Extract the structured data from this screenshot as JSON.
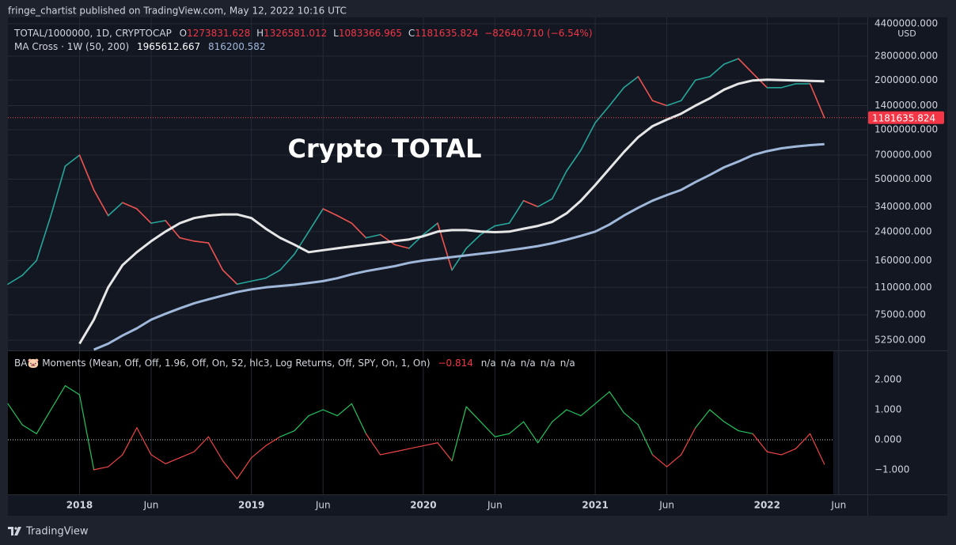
{
  "header": "fringe_chartist published on TradingView.com, May 12, 2022 10:16 UTC",
  "footer": "TradingView",
  "chart_data": [
    {
      "type": "line",
      "annotation": "Crypto TOTAL",
      "axis_unit": "USD",
      "legend": {
        "ohlc": [
          {
            "label": "O",
            "value": 1273831.628
          },
          {
            "label": "H",
            "value": 1326581.012
          },
          {
            "label": "L",
            "value": 1083366.965
          }
        ],
        "close_label": "C",
        "change": "−82640.710 (−6.54%)",
        "indicator": "MA Cross · 1W (50, 200)"
      },
      "log_scale": true,
      "grid": true,
      "last_price_line": true,
      "x": [
        "2017-08",
        "2017-09",
        "2017-10",
        "2017-11",
        "2017-12",
        "2018-01",
        "2018-02",
        "2018-03",
        "2018-04",
        "2018-05",
        "2018-06",
        "2018-07",
        "2018-08",
        "2018-09",
        "2018-10",
        "2018-11",
        "2018-12",
        "2019-01",
        "2019-02",
        "2019-03",
        "2019-04",
        "2019-05",
        "2019-06",
        "2019-07",
        "2019-08",
        "2019-09",
        "2019-10",
        "2019-11",
        "2019-12",
        "2020-01",
        "2020-02",
        "2020-03",
        "2020-04",
        "2020-05",
        "2020-06",
        "2020-07",
        "2020-08",
        "2020-09",
        "2020-10",
        "2020-11",
        "2020-12",
        "2021-01",
        "2021-02",
        "2021-03",
        "2021-04",
        "2021-05",
        "2021-06",
        "2021-07",
        "2021-08",
        "2021-09",
        "2021-10",
        "2021-11",
        "2021-12",
        "2022-01",
        "2022-02",
        "2022-03",
        "2022-04",
        "2022-05"
      ],
      "xlim": [
        "2017-08",
        "2022-08"
      ],
      "xticks": [
        {
          "value": "2018-01",
          "label": "2018"
        },
        {
          "value": "2018-06",
          "label": "Jun"
        },
        {
          "value": "2019-01",
          "label": "2019"
        },
        {
          "value": "2019-06",
          "label": "Jun"
        },
        {
          "value": "2020-01",
          "label": "2020"
        },
        {
          "value": "2020-06",
          "label": "Jun"
        },
        {
          "value": "2021-01",
          "label": "2021"
        },
        {
          "value": "2021-06",
          "label": "Jun"
        },
        {
          "value": "2022-01",
          "label": "2022"
        },
        {
          "value": "2022-06",
          "label": "Jun"
        }
      ],
      "ylim": [
        45500,
        4810000
      ],
      "yticks": [
        {
          "value": 4400000,
          "label": "4400000.000"
        },
        {
          "value": 2800000,
          "label": "2800000.000"
        },
        {
          "value": 2000000,
          "label": "2000000.000"
        },
        {
          "value": 1400000,
          "label": "1400000.000"
        },
        {
          "value": 1000000,
          "label": "1000000.000"
        },
        {
          "value": 700000,
          "label": "700000.000"
        },
        {
          "value": 500000,
          "label": "500000.000"
        },
        {
          "value": 340000,
          "label": "340000.000"
        },
        {
          "value": 240000,
          "label": "240000.000"
        },
        {
          "value": 160000,
          "label": "160000.000"
        },
        {
          "value": 110000,
          "label": "110000.000"
        },
        {
          "value": 75000,
          "label": "75000.000"
        },
        {
          "value": 52500,
          "label": "52500.000"
        }
      ],
      "series": [
        {
          "name": "TOTAL/1000000, 1D, CRYPTOCAP",
          "up_color": "#26a69a",
          "down_color": "#ef5350",
          "values": [
            115000,
            130000,
            160000,
            300000,
            600000,
            700000,
            430000,
            300000,
            360000,
            330000,
            270000,
            280000,
            220000,
            210000,
            205000,
            140000,
            115000,
            120000,
            125000,
            140000,
            175000,
            240000,
            330000,
            300000,
            270000,
            220000,
            230000,
            200000,
            190000,
            230000,
            270000,
            140000,
            190000,
            230000,
            260000,
            270000,
            370000,
            340000,
            380000,
            560000,
            750000,
            1100000,
            1400000,
            1800000,
            2100000,
            1500000,
            1400000,
            1500000,
            2000000,
            2100000,
            2500000,
            2700000,
            2200000,
            1800000,
            1800000,
            1900000,
            1900000,
            1181635.824
          ]
        },
        {
          "color": "#e6e6e6",
          "values": [
            null,
            null,
            null,
            null,
            null,
            50000,
            70000,
            110000,
            150000,
            180000,
            210000,
            240000,
            270000,
            290000,
            300000,
            305000,
            305000,
            290000,
            250000,
            220000,
            200000,
            180000,
            185000,
            190000,
            195000,
            200000,
            205000,
            210000,
            215000,
            225000,
            240000,
            245000,
            245000,
            240000,
            238000,
            240000,
            250000,
            260000,
            275000,
            310000,
            370000,
            460000,
            580000,
            730000,
            900000,
            1050000,
            1150000,
            1250000,
            1400000,
            1550000,
            1750000,
            1900000,
            1990000,
            2010000,
            2000000,
            1990000,
            1980000,
            1965612.667
          ]
        },
        {
          "color": "#9fb7d9",
          "values": [
            null,
            null,
            null,
            null,
            null,
            null,
            46000,
            50000,
            56000,
            62000,
            70000,
            76000,
            82000,
            88000,
            93000,
            98000,
            103000,
            107000,
            110000,
            112000,
            114000,
            117000,
            120000,
            125000,
            132000,
            138000,
            143000,
            148000,
            155000,
            160000,
            164000,
            168000,
            172000,
            176000,
            180000,
            185000,
            190000,
            196000,
            204000,
            214000,
            226000,
            240000,
            265000,
            300000,
            335000,
            370000,
            400000,
            430000,
            480000,
            530000,
            590000,
            640000,
            700000,
            740000,
            770000,
            790000,
            805000,
            816200.582
          ]
        }
      ]
    },
    {
      "type": "line",
      "title": "BA🐷 Moments (Mean, Off, Off, 1.96, Off, On, 52, hlc3, Log Returns, Off, SPY, On, 1, On)",
      "na_labels": [
        "n/a",
        "n/a",
        "n/a",
        "n/a",
        "n/a"
      ],
      "zero_line": true,
      "ylim": [
        -1.82,
        2.95
      ],
      "yticks": [
        {
          "value": 2,
          "label": "2.000"
        },
        {
          "value": 1,
          "label": "1.000"
        },
        {
          "value": 0,
          "label": "0.000"
        },
        {
          "value": -1,
          "label": "−1.000"
        }
      ],
      "series": [
        {
          "up_color": "#22c55e",
          "down_color": "#ef4444",
          "values": [
            1.2,
            0.5,
            0.2,
            1.0,
            1.8,
            1.5,
            -1.0,
            -0.9,
            -0.5,
            0.4,
            -0.5,
            -0.8,
            -0.6,
            -0.4,
            0.1,
            -0.7,
            -1.3,
            -0.6,
            -0.2,
            0.1,
            0.3,
            0.8,
            1.0,
            0.8,
            1.2,
            0.2,
            -0.5,
            -0.4,
            -0.3,
            -0.2,
            -0.1,
            -0.7,
            1.1,
            0.6,
            0.1,
            0.2,
            0.6,
            -0.1,
            0.6,
            1.0,
            0.8,
            1.2,
            1.6,
            0.9,
            0.5,
            -0.5,
            -0.9,
            -0.5,
            0.4,
            1.0,
            0.6,
            0.3,
            0.2,
            -0.4,
            -0.5,
            -0.3,
            0.2,
            -0.814
          ],
          "value_labels": [
            null,
            null,
            null,
            null,
            null,
            null,
            null,
            null,
            null,
            null,
            null,
            null,
            null,
            null,
            null,
            null,
            null,
            null,
            null,
            null,
            null,
            null,
            null,
            null,
            null,
            null,
            null,
            null,
            null,
            null,
            null,
            null,
            null,
            null,
            null,
            null,
            null,
            null,
            null,
            null,
            null,
            null,
            null,
            null,
            null,
            null,
            null,
            null,
            null,
            null,
            null,
            null,
            null,
            null,
            null,
            null,
            null,
            "−0.814"
          ]
        }
      ]
    }
  ]
}
